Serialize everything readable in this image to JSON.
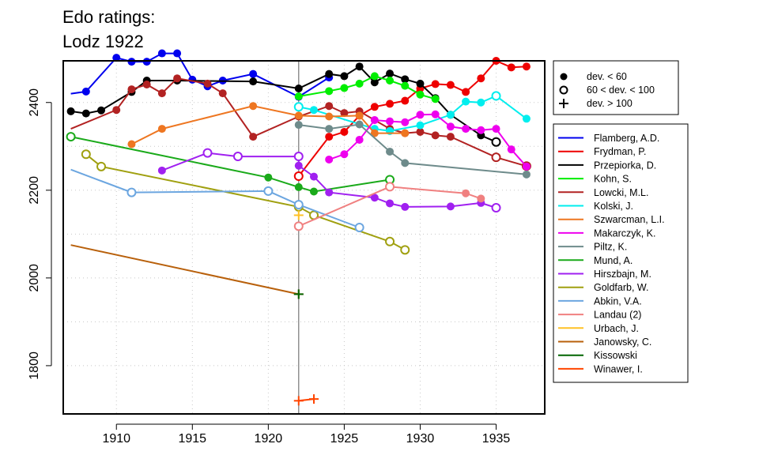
{
  "title_lines": [
    "Edo ratings:",
    "Lodz 1922"
  ],
  "chart_data": {
    "type": "line",
    "title": "Edo ratings: Lodz 1922",
    "xlabel": "",
    "ylabel": "",
    "xlim": [
      1906.5,
      1938.2
    ],
    "ylim": [
      1690,
      2495
    ],
    "x_ticks": [
      1910,
      1915,
      1920,
      1925,
      1930,
      1935
    ],
    "y_ticks": [
      1800,
      2000,
      2200,
      2400
    ],
    "grid": true,
    "event_year": 1922,
    "deviation_legend": [
      {
        "symbol": "filled",
        "label": "dev. < 60"
      },
      {
        "symbol": "open",
        "label": "60 < dev. < 100"
      },
      {
        "symbol": "plus",
        "label": "dev. > 100"
      }
    ],
    "series": [
      {
        "name": "Flamberg, A.D.",
        "color": "#0000ee",
        "points": [
          [
            1907,
            2420,
            "n"
          ],
          [
            1908,
            2425,
            "f"
          ],
          [
            1910,
            2502,
            "f"
          ],
          [
            1911,
            2493,
            "f"
          ],
          [
            1912,
            2493,
            "f"
          ],
          [
            1913,
            2512,
            "f"
          ],
          [
            1914,
            2512,
            "f"
          ],
          [
            1915,
            2452,
            "f"
          ],
          [
            1916,
            2437,
            "f"
          ],
          [
            1917,
            2450,
            "f"
          ],
          [
            1919,
            2465,
            "f"
          ],
          [
            1922,
            2413,
            "f"
          ],
          [
            1924,
            2457,
            "f"
          ]
        ]
      },
      {
        "name": "Frydman, P.",
        "color": "#ee0000",
        "points": [
          [
            1922,
            2232,
            "o"
          ],
          [
            1924,
            2322,
            "f"
          ],
          [
            1925,
            2333,
            "f"
          ],
          [
            1926,
            2370,
            "f"
          ],
          [
            1927,
            2390,
            "f"
          ],
          [
            1928,
            2397,
            "f"
          ],
          [
            1929,
            2404,
            "f"
          ],
          [
            1930,
            2432,
            "f"
          ],
          [
            1931,
            2442,
            "f"
          ],
          [
            1932,
            2440,
            "f"
          ],
          [
            1933,
            2424,
            "f"
          ],
          [
            1934,
            2455,
            "f"
          ],
          [
            1935,
            2495,
            "f"
          ],
          [
            1936,
            2480,
            "f"
          ],
          [
            1937,
            2482,
            "f"
          ]
        ]
      },
      {
        "name": "Przepiorka, D.",
        "color": "#000000",
        "points": [
          [
            1907,
            2380,
            "f"
          ],
          [
            1908,
            2375,
            "f"
          ],
          [
            1909,
            2382,
            "f"
          ],
          [
            1911,
            2424,
            "f"
          ],
          [
            1912,
            2450,
            "f"
          ],
          [
            1914,
            2450,
            "f"
          ],
          [
            1919,
            2448,
            "f"
          ],
          [
            1922,
            2432,
            "f"
          ],
          [
            1924,
            2465,
            "f"
          ],
          [
            1925,
            2460,
            "f"
          ],
          [
            1926,
            2482,
            "f"
          ],
          [
            1927,
            2446,
            "f"
          ],
          [
            1928,
            2466,
            "f"
          ],
          [
            1929,
            2453,
            "f"
          ],
          [
            1930,
            2443,
            "f"
          ],
          [
            1931,
            2410,
            "f"
          ],
          [
            1932,
            2372,
            "f"
          ],
          [
            1934,
            2325,
            "f"
          ],
          [
            1935,
            2310,
            "o"
          ]
        ]
      },
      {
        "name": "Kohn, S.",
        "color": "#00ee00",
        "points": [
          [
            1922,
            2414,
            "f"
          ],
          [
            1924,
            2426,
            "f"
          ],
          [
            1925,
            2433,
            "f"
          ],
          [
            1926,
            2443,
            "f"
          ],
          [
            1927,
            2460,
            "f"
          ],
          [
            1928,
            2450,
            "f"
          ],
          [
            1929,
            2438,
            "f"
          ],
          [
            1930,
            2418,
            "f"
          ],
          [
            1931,
            2408,
            "f"
          ]
        ]
      },
      {
        "name": "Lowcki, M.L.",
        "color": "#b22222",
        "points": [
          [
            1907,
            2340,
            "n"
          ],
          [
            1910,
            2383,
            "f"
          ],
          [
            1911,
            2430,
            "f"
          ],
          [
            1912,
            2441,
            "f"
          ],
          [
            1913,
            2421,
            "f"
          ],
          [
            1914,
            2455,
            "f"
          ],
          [
            1916,
            2443,
            "f"
          ],
          [
            1917,
            2421,
            "f"
          ],
          [
            1919,
            2322,
            "f"
          ],
          [
            1922,
            2368,
            "f"
          ],
          [
            1924,
            2392,
            "f"
          ],
          [
            1925,
            2376,
            "f"
          ],
          [
            1926,
            2380,
            "f"
          ],
          [
            1928,
            2340,
            "f"
          ],
          [
            1929,
            2330,
            "f"
          ],
          [
            1930,
            2333,
            "f"
          ],
          [
            1931,
            2325,
            "f"
          ],
          [
            1932,
            2322,
            "f"
          ],
          [
            1935,
            2275,
            "o"
          ],
          [
            1937,
            2255,
            "o"
          ]
        ]
      },
      {
        "name": "Kolski, J.",
        "color": "#00eeee",
        "points": [
          [
            1922,
            2390,
            "o"
          ],
          [
            1923,
            2383,
            "f"
          ],
          [
            1927,
            2340,
            "f"
          ],
          [
            1928,
            2335,
            "f"
          ],
          [
            1930,
            2348,
            "f"
          ],
          [
            1932,
            2372,
            "f"
          ],
          [
            1933,
            2402,
            "f"
          ],
          [
            1934,
            2400,
            "f"
          ],
          [
            1935,
            2415,
            "o"
          ],
          [
            1937,
            2363,
            "f"
          ]
        ]
      },
      {
        "name": "Szwarcman, L.I.",
        "color": "#ee7621",
        "points": [
          [
            1911,
            2305,
            "f"
          ],
          [
            1913,
            2340,
            "f"
          ],
          [
            1919,
            2392,
            "f"
          ],
          [
            1922,
            2370,
            "f"
          ],
          [
            1924,
            2368,
            "f"
          ],
          [
            1926,
            2370,
            "f"
          ],
          [
            1927,
            2330,
            "f"
          ],
          [
            1929,
            2330,
            "f"
          ]
        ]
      },
      {
        "name": "Makarczyk, K.",
        "color": "#ee00ee",
        "points": [
          [
            1924,
            2270,
            "f"
          ],
          [
            1925,
            2282,
            "f"
          ],
          [
            1926,
            2315,
            "f"
          ],
          [
            1927,
            2360,
            "f"
          ],
          [
            1928,
            2357,
            "f"
          ],
          [
            1929,
            2355,
            "f"
          ],
          [
            1930,
            2372,
            "f"
          ],
          [
            1931,
            2373,
            "f"
          ],
          [
            1932,
            2345,
            "f"
          ],
          [
            1933,
            2340,
            "f"
          ],
          [
            1934,
            2337,
            "f"
          ],
          [
            1935,
            2340,
            "f"
          ],
          [
            1936,
            2293,
            "f"
          ],
          [
            1937,
            2254,
            "f"
          ]
        ]
      },
      {
        "name": "Piltz, K.",
        "color": "#6e8b8b",
        "points": [
          [
            1922,
            2349,
            "f"
          ],
          [
            1924,
            2340,
            "f"
          ],
          [
            1926,
            2350,
            "f"
          ],
          [
            1928,
            2288,
            "f"
          ],
          [
            1929,
            2262,
            "f"
          ],
          [
            1937,
            2236,
            "f"
          ]
        ]
      },
      {
        "name": "Mund, A.",
        "color": "#1aaa1a",
        "points": [
          [
            1907,
            2322,
            "o"
          ],
          [
            1920,
            2229,
            "f"
          ],
          [
            1922,
            2207,
            "f"
          ],
          [
            1923,
            2197,
            "f"
          ],
          [
            1928,
            2224,
            "o"
          ]
        ]
      },
      {
        "name": "Hirszbajn, M.",
        "color": "#a020f0",
        "points": [
          [
            1913,
            2245,
            "f"
          ],
          [
            1916,
            2285,
            "o"
          ],
          [
            1918,
            2277,
            "o"
          ],
          [
            1922,
            2277,
            "o"
          ],
          [
            1922,
            2256,
            "f"
          ],
          [
            1923,
            2231,
            "f"
          ],
          [
            1924,
            2195,
            "f"
          ],
          [
            1927,
            2183,
            "f"
          ],
          [
            1928,
            2170,
            "f"
          ],
          [
            1929,
            2162,
            "f"
          ],
          [
            1932,
            2163,
            "f"
          ],
          [
            1934,
            2171,
            "f"
          ],
          [
            1935,
            2160,
            "o"
          ]
        ]
      },
      {
        "name": "Goldfarb, W.",
        "color": "#a0a010",
        "points": [
          [
            1908,
            2282,
            "o"
          ],
          [
            1909,
            2254,
            "o"
          ],
          [
            1922,
            2162,
            "o"
          ],
          [
            1923,
            2143,
            "o"
          ],
          [
            1928,
            2083,
            "o"
          ],
          [
            1929,
            2064,
            "o"
          ]
        ]
      },
      {
        "name": "Abkin, V.A.",
        "color": "#6ca6e0",
        "points": [
          [
            1907,
            2247,
            "n"
          ],
          [
            1911,
            2195,
            "o"
          ],
          [
            1920,
            2198,
            "o"
          ],
          [
            1922,
            2167,
            "o"
          ],
          [
            1926,
            2115,
            "o"
          ]
        ]
      },
      {
        "name": "Landau (2)",
        "color": "#f08080",
        "points": [
          [
            1922,
            2118,
            "o"
          ],
          [
            1928,
            2208,
            "o"
          ],
          [
            1933,
            2193,
            "f"
          ],
          [
            1934,
            2181,
            "f"
          ]
        ]
      },
      {
        "name": "Urbach, J.",
        "color": "#ffc125",
        "points": [
          [
            1922,
            2143,
            "p"
          ]
        ]
      },
      {
        "name": "Janowsky, C.",
        "color": "#b8600b",
        "points": [
          [
            1907,
            2075,
            "n"
          ],
          [
            1922,
            1963,
            "p"
          ]
        ]
      },
      {
        "name": "Kissowski",
        "color": "#006400",
        "points": [
          [
            1922,
            1963,
            "p"
          ]
        ]
      },
      {
        "name": "Winawer, I.",
        "color": "#ff4500",
        "points": [
          [
            1922,
            1720,
            "p"
          ],
          [
            1923,
            1724,
            "p"
          ]
        ]
      }
    ]
  }
}
